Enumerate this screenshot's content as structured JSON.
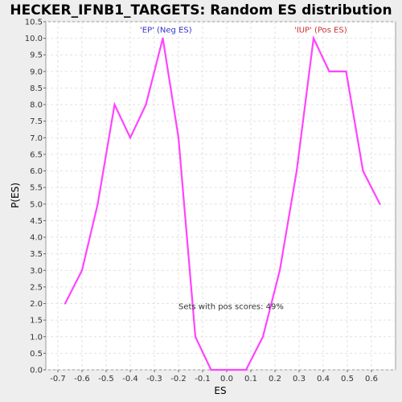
{
  "chart_data": {
    "type": "line",
    "title": "HECKER_IFNB1_TARGETS: Random ES distribution",
    "xlabel": "ES",
    "ylabel": "P(ES)",
    "xlim": [
      -0.75,
      0.7
    ],
    "ylim": [
      0,
      10.5
    ],
    "x_ticks": [
      -0.7,
      -0.6,
      -0.5,
      -0.4,
      -0.3,
      -0.2,
      -0.1,
      0.0,
      0.1,
      0.2,
      0.3,
      0.4,
      0.5,
      0.6
    ],
    "x_tick_labels": [
      "-0.7",
      "-0.6",
      "-0.5",
      "-0.4",
      "-0.3",
      "-0.2",
      "-0.1",
      "0.0",
      "0.1",
      "0.2",
      "0.3",
      "0.4",
      "0.5",
      "0.6"
    ],
    "y_ticks": [
      0.0,
      0.5,
      1.0,
      1.5,
      2.0,
      2.5,
      3.0,
      3.5,
      4.0,
      4.5,
      5.0,
      5.5,
      6.0,
      6.5,
      7.0,
      7.5,
      8.0,
      8.5,
      9.0,
      9.5,
      10.0,
      10.5
    ],
    "y_tick_labels": [
      "0.0",
      "0.5",
      "1.0",
      "1.5",
      "2.0",
      "2.5",
      "3.0",
      "3.5",
      "4.0",
      "4.5",
      "5.0",
      "5.5",
      "6.0",
      "6.5",
      "7.0",
      "7.5",
      "8.0",
      "8.5",
      "9.0",
      "9.5",
      "10.0",
      "10.5"
    ],
    "grid": true,
    "series": [
      {
        "color": "#ff44ff",
        "x": [
          -0.67,
          -0.6,
          -0.535,
          -0.465,
          -0.4,
          -0.335,
          -0.265,
          -0.2,
          -0.13,
          -0.065,
          0.0,
          0.08,
          0.15,
          0.22,
          0.29,
          0.36,
          0.425,
          0.495,
          0.565,
          0.635
        ],
        "y": [
          2,
          3,
          5,
          8,
          7,
          8,
          10,
          7,
          1,
          0,
          0,
          0,
          1,
          3,
          6,
          10,
          9,
          9,
          6,
          5
        ]
      }
    ],
    "annotations": [
      {
        "text": "'EP' (Neg ES)",
        "x": -0.36,
        "y": 10.25,
        "color": "#3333cc"
      },
      {
        "text": "'IUP' (Pos ES)",
        "x": 0.28,
        "y": 10.25,
        "color": "#cc3333"
      },
      {
        "text": "Sets with pos scores: 49%",
        "x": -0.2,
        "y": 1.9,
        "color": "#333333"
      }
    ]
  }
}
